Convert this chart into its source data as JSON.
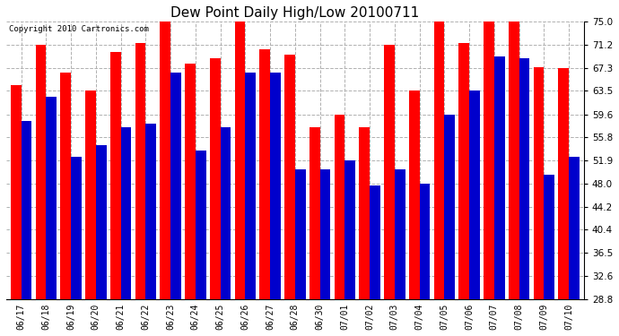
{
  "title": "Dew Point Daily High/Low 20100711",
  "copyright": "Copyright 2010 Cartronics.com",
  "labels": [
    "06/17",
    "06/18",
    "06/19",
    "06/20",
    "06/21",
    "06/22",
    "06/23",
    "06/24",
    "06/25",
    "06/26",
    "06/27",
    "06/28",
    "06/30",
    "07/01",
    "07/02",
    "07/03",
    "07/04",
    "07/05",
    "07/06",
    "07/07",
    "07/08",
    "07/09",
    "07/10"
  ],
  "highs": [
    64.5,
    71.2,
    66.5,
    63.5,
    70.0,
    71.5,
    75.0,
    68.0,
    69.0,
    75.0,
    70.5,
    69.5,
    57.5,
    59.6,
    57.5,
    71.2,
    63.5,
    75.0,
    71.5,
    77.0,
    75.0,
    67.5,
    67.3
  ],
  "lows": [
    58.5,
    62.5,
    52.5,
    54.5,
    57.5,
    58.0,
    66.5,
    53.5,
    57.5,
    66.5,
    66.5,
    50.5,
    50.5,
    51.9,
    47.8,
    50.5,
    48.0,
    59.6,
    63.5,
    69.2,
    69.0,
    49.5,
    52.5
  ],
  "ylim_min": 28.8,
  "ylim_max": 75.0,
  "yticks": [
    28.8,
    32.6,
    36.5,
    40.4,
    44.2,
    48.0,
    51.9,
    55.8,
    59.6,
    63.5,
    67.3,
    71.2,
    75.0
  ],
  "high_color": "#ff0000",
  "low_color": "#0000cc",
  "bg_color": "#ffffff",
  "grid_color": "#b0b0b0",
  "bar_width": 0.42
}
